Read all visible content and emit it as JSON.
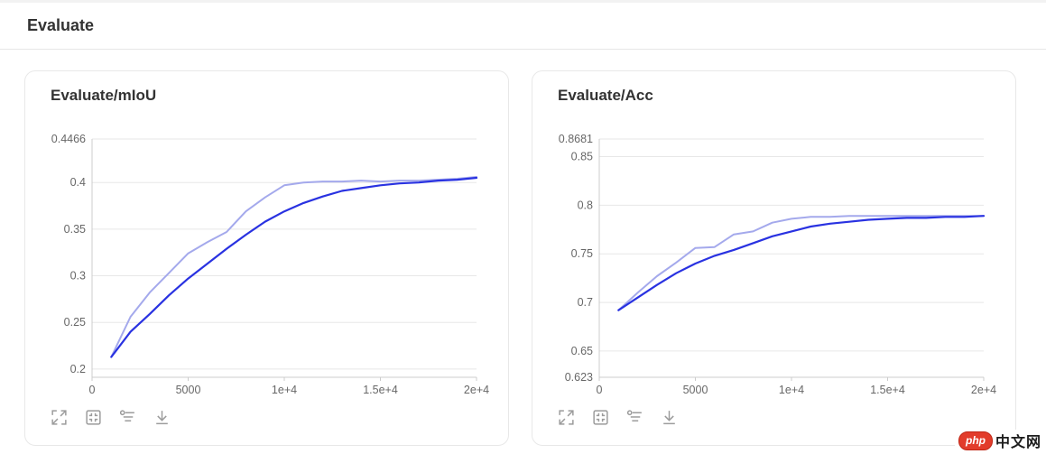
{
  "header": {
    "title": "Evaluate"
  },
  "toolbar": {
    "buttons": [
      {
        "name": "maximize",
        "label": "Maximize"
      },
      {
        "name": "restore",
        "label": "Restore size"
      },
      {
        "name": "runs",
        "label": "Select runs"
      },
      {
        "name": "download",
        "label": "Download"
      }
    ]
  },
  "watermark": {
    "badge": "php",
    "text": "中文网"
  },
  "colors": {
    "line_actual": "#a4a9ec",
    "line_smoothed": "#2932e1",
    "grid": "#e7e7e7",
    "axis": "#cccccc"
  },
  "chart_data": [
    {
      "type": "line",
      "title": "Evaluate/mIoU",
      "xlabel": "",
      "ylabel": "",
      "grid": true,
      "legend": "none",
      "xlim": [
        0,
        20000
      ],
      "ylim": [
        0.1912,
        0.4466
      ],
      "xticks": [
        {
          "value": 0,
          "label": "0"
        },
        {
          "value": 5000,
          "label": "5000"
        },
        {
          "value": 10000,
          "label": "1e+4"
        },
        {
          "value": 15000,
          "label": "1.5e+4"
        },
        {
          "value": 20000,
          "label": "2e+4"
        }
      ],
      "yticks": [
        {
          "value": 0.4466,
          "label": "0.4466"
        },
        {
          "value": 0.4,
          "label": "0.4"
        },
        {
          "value": 0.35,
          "label": "0.35"
        },
        {
          "value": 0.3,
          "label": "0.3"
        },
        {
          "value": 0.25,
          "label": "0.25"
        },
        {
          "value": 0.2,
          "label": "0.2"
        }
      ],
      "x": [
        1000,
        2000,
        3000,
        4000,
        5000,
        6000,
        7000,
        8000,
        9000,
        10000,
        11000,
        12000,
        13000,
        14000,
        15000,
        16000,
        17000,
        18000,
        19000,
        20000
      ],
      "series": [
        {
          "name": "actual",
          "color": "#a4a9ec",
          "width": 2,
          "values": [
            0.213,
            0.256,
            0.282,
            0.303,
            0.324,
            0.336,
            0.347,
            0.369,
            0.384,
            0.397,
            0.4,
            0.401,
            0.401,
            0.402,
            0.401,
            0.402,
            0.402,
            0.403,
            0.404,
            0.406
          ]
        },
        {
          "name": "smoothed",
          "color": "#2932e1",
          "width": 2.2,
          "values": [
            0.213,
            0.24,
            0.259,
            0.279,
            0.297,
            0.313,
            0.329,
            0.344,
            0.358,
            0.369,
            0.378,
            0.385,
            0.391,
            0.394,
            0.397,
            0.399,
            0.4,
            0.402,
            0.403,
            0.405
          ]
        }
      ]
    },
    {
      "type": "line",
      "title": "Evaluate/Acc",
      "xlabel": "",
      "ylabel": "",
      "grid": true,
      "legend": "none",
      "xlim": [
        0,
        20000
      ],
      "ylim": [
        0.623,
        0.8681
      ],
      "xticks": [
        {
          "value": 0,
          "label": "0"
        },
        {
          "value": 5000,
          "label": "5000"
        },
        {
          "value": 10000,
          "label": "1e+4"
        },
        {
          "value": 15000,
          "label": "1.5e+4"
        },
        {
          "value": 20000,
          "label": "2e+4"
        }
      ],
      "yticks": [
        {
          "value": 0.8681,
          "label": "0.8681"
        },
        {
          "value": 0.85,
          "label": "0.85"
        },
        {
          "value": 0.8,
          "label": "0.8"
        },
        {
          "value": 0.75,
          "label": "0.75"
        },
        {
          "value": 0.7,
          "label": "0.7"
        },
        {
          "value": 0.65,
          "label": "0.65"
        },
        {
          "value": 0.623,
          "label": "0.623"
        }
      ],
      "x": [
        1000,
        2000,
        3000,
        4000,
        5000,
        6000,
        7000,
        8000,
        9000,
        10000,
        11000,
        12000,
        13000,
        14000,
        15000,
        16000,
        17000,
        18000,
        19000,
        20000
      ],
      "series": [
        {
          "name": "actual",
          "color": "#a4a9ec",
          "width": 2,
          "values": [
            0.692,
            0.71,
            0.727,
            0.741,
            0.756,
            0.757,
            0.77,
            0.773,
            0.782,
            0.786,
            0.788,
            0.788,
            0.789,
            0.789,
            0.789,
            0.789,
            0.789,
            0.789,
            0.789,
            0.789
          ]
        },
        {
          "name": "smoothed",
          "color": "#2932e1",
          "width": 2.2,
          "values": [
            0.692,
            0.705,
            0.718,
            0.73,
            0.74,
            0.748,
            0.754,
            0.761,
            0.768,
            0.773,
            0.778,
            0.781,
            0.783,
            0.785,
            0.786,
            0.787,
            0.787,
            0.788,
            0.788,
            0.789
          ]
        }
      ]
    }
  ]
}
